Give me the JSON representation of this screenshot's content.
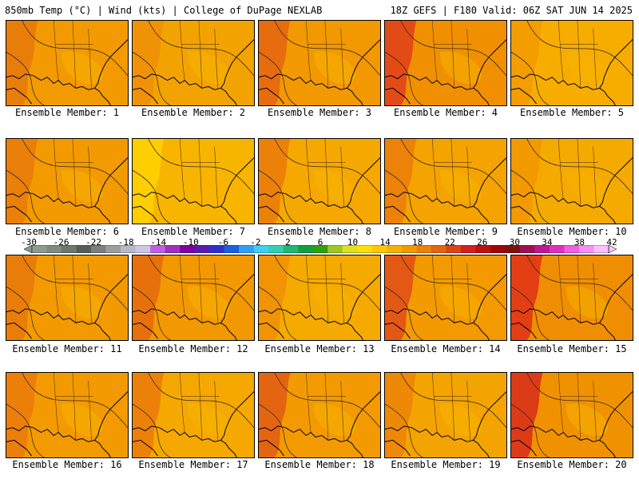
{
  "header": {
    "left": "850mb Temp (°C) | Wind (kts) | College of DuPage NEXLAB",
    "right": "18Z GEFS | F180 Valid: 06Z SAT JUN 14 2025"
  },
  "members": [
    {
      "label": "Ensemble Member: 1",
      "base": "#f29a00",
      "warm": "#e8780c"
    },
    {
      "label": "Ensemble Member: 2",
      "base": "#f3a300",
      "warm": "#ef8f06"
    },
    {
      "label": "Ensemble Member: 3",
      "base": "#f29800",
      "warm": "#e46410"
    },
    {
      "label": "Ensemble Member: 4",
      "base": "#f09000",
      "warm": "#e0401a"
    },
    {
      "label": "Ensemble Member: 5",
      "base": "#f6ad00",
      "warm": "#f29a00"
    },
    {
      "label": "Ensemble Member: 6",
      "base": "#f29a00",
      "warm": "#e97a0a"
    },
    {
      "label": "Ensemble Member: 7",
      "base": "#f7b500",
      "warm": "#ffd200"
    },
    {
      "label": "Ensemble Member: 8",
      "base": "#f5a800",
      "warm": "#ea7a0a"
    },
    {
      "label": "Ensemble Member: 9",
      "base": "#f4a300",
      "warm": "#ea7c0a"
    },
    {
      "label": "Ensemble Member: 10",
      "base": "#f5aa00",
      "warm": "#f29800"
    },
    {
      "label": "Ensemble Member: 11",
      "base": "#f29a00",
      "warm": "#e8780c"
    },
    {
      "label": "Ensemble Member: 12",
      "base": "#f29800",
      "warm": "#e4680e"
    },
    {
      "label": "Ensemble Member: 13",
      "base": "#f5aa00",
      "warm": "#ef9004"
    },
    {
      "label": "Ensemble Member: 14",
      "base": "#f29a00",
      "warm": "#e04c18"
    },
    {
      "label": "Ensemble Member: 15",
      "base": "#ef8e02",
      "warm": "#e03018"
    },
    {
      "label": "Ensemble Member: 16",
      "base": "#f29a00",
      "warm": "#ea7a0a"
    },
    {
      "label": "Ensemble Member: 17",
      "base": "#f5a800",
      "warm": "#ea7a0a"
    },
    {
      "label": "Ensemble Member: 18",
      "base": "#f29a00",
      "warm": "#e25c14"
    },
    {
      "label": "Ensemble Member: 19",
      "base": "#f4a400",
      "warm": "#ec8408"
    },
    {
      "label": "Ensemble Member: 20",
      "base": "#f09200",
      "warm": "#d82c1c"
    }
  ],
  "colorbar": {
    "labels": [
      "-30",
      "-26",
      "-22",
      "-18",
      "-14",
      "-10",
      "-6",
      "-2",
      "2",
      "6",
      "10",
      "14",
      "18",
      "22",
      "26",
      "30",
      "34",
      "38",
      "42"
    ],
    "colors": [
      "#8c9c8c",
      "#7c8a7c",
      "#6b786b",
      "#555d55",
      "#7e7e7e",
      "#9d9d9d",
      "#b8b8c8",
      "#cfc6e6",
      "#c060e0",
      "#a030c0",
      "#8000a0",
      "#5a1ab0",
      "#3030c8",
      "#1a60e0",
      "#30a0f0",
      "#40d0f0",
      "#30d0b0",
      "#20b870",
      "#10a040",
      "#30a010",
      "#a0c820",
      "#e0e020",
      "#ffe000",
      "#ffc800",
      "#f7b000",
      "#f29a00",
      "#ec8206",
      "#e46410",
      "#dc4418",
      "#d42020",
      "#c01010",
      "#a00808",
      "#801010",
      "#a01050",
      "#c01890",
      "#e030c0",
      "#f060e0",
      "#f890f0",
      "#fcc0fc"
    ]
  }
}
